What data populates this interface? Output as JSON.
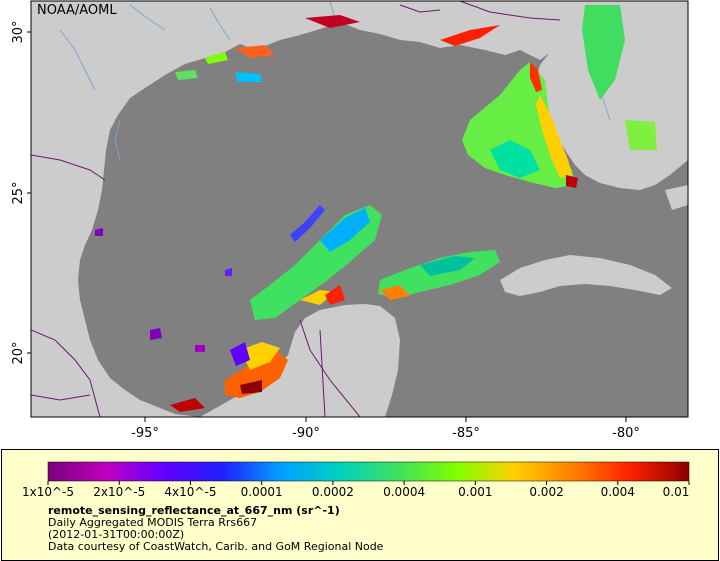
{
  "map": {
    "attribution": "NOAA/AOML",
    "lat_ticks": [
      "30°",
      "25°",
      "20°"
    ],
    "lon_ticks": [
      "-95°",
      "-90°",
      "-85°",
      "-80°"
    ],
    "colors": {
      "ocean_nodata": "#808080",
      "land": "#cccccc",
      "rivers": "#7fa6c9",
      "borders": "#6a1a6a"
    }
  },
  "legend": {
    "color_stops": [
      "#7a007a",
      "#c000c0",
      "#6000ff",
      "#2020ff",
      "#00a0ff",
      "#00d0c0",
      "#40e060",
      "#80ff00",
      "#ffd000",
      "#ff8000",
      "#ff2000",
      "#8b0000"
    ],
    "tick_labels": [
      "1x10^-5",
      "2x10^-5",
      "4x10^-5",
      "0.0001",
      "0.0002",
      "0.0004",
      "0.001",
      "0.002",
      "0.004",
      "0.01"
    ],
    "variable": "remote_sensing_reflectance_at_667_nm (sr^-1)",
    "product": "Daily Aggregated MODIS Terra Rrs667",
    "time": "(2012-01-31T00:00:00Z)",
    "credit": "Data courtesy of CoastWatch, Carib. and GoM Regional Node"
  }
}
